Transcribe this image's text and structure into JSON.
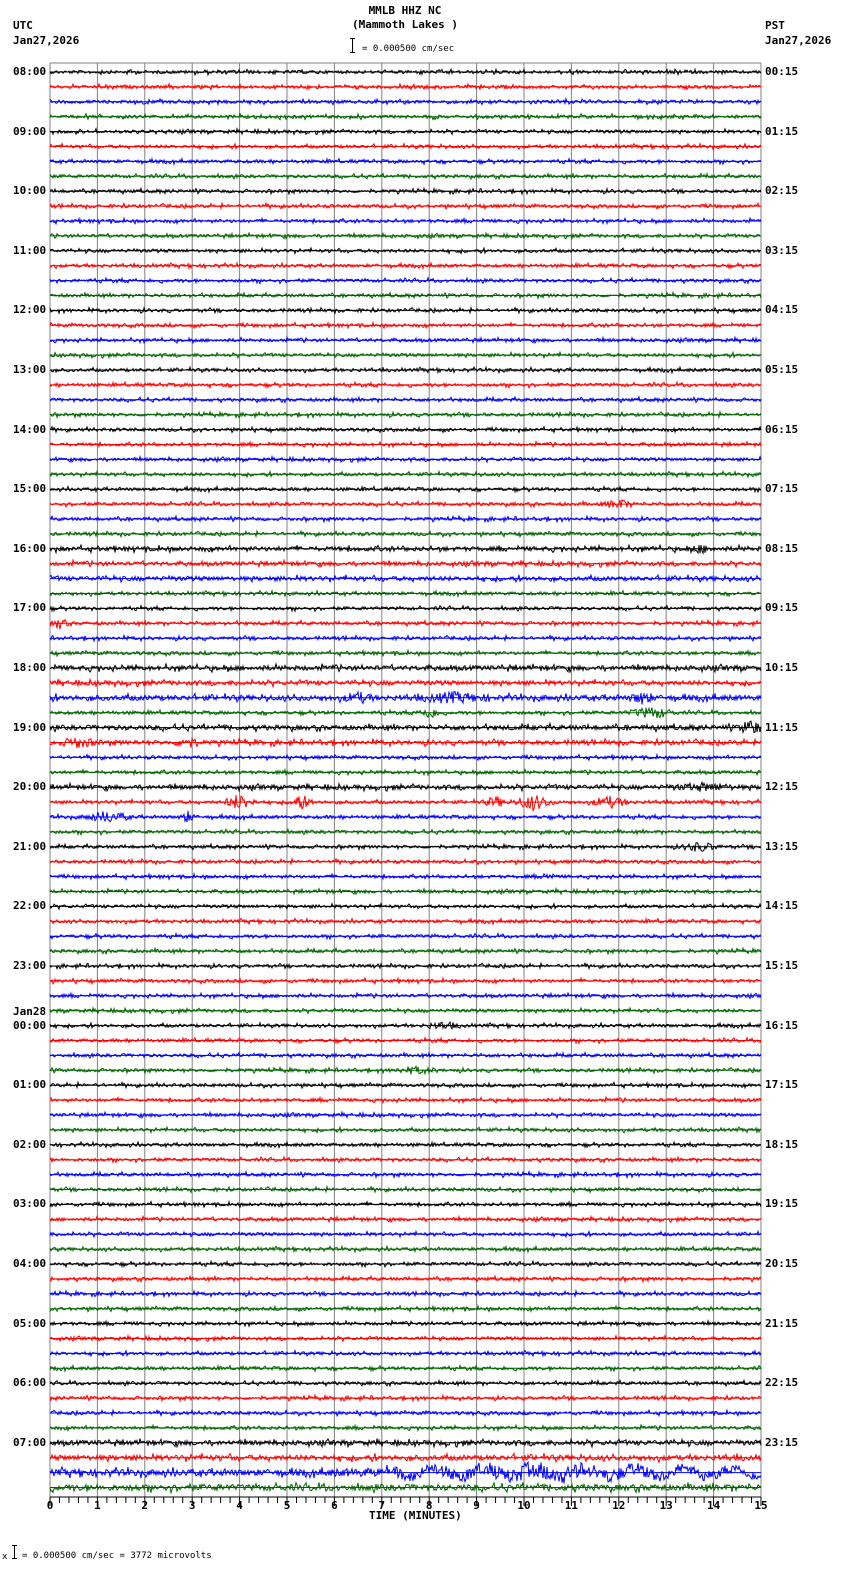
{
  "header": {
    "station": "MMLB HHZ NC",
    "location": "(Mammoth Lakes )",
    "left_tz": "UTC",
    "left_date": "Jan27,2026",
    "right_tz": "PST",
    "right_date": "Jan27,2026",
    "scale_text": "= 0.000500 cm/sec"
  },
  "footer": {
    "prefix": "x",
    "scale_text": "= 0.000500 cm/sec =    3772 microvolts"
  },
  "colors": {
    "trace": [
      "#000000",
      "#ff0000",
      "#0000ff",
      "#006400"
    ],
    "grid": "#808080",
    "axis": "#000000"
  },
  "chart_data": {
    "type": "line",
    "title": "MMLB HHZ NC (Mammoth Lakes )",
    "xlabel": "TIME (MINUTES)",
    "ylabel": "",
    "xlim": [
      0,
      15
    ],
    "x_ticks": [
      0,
      1,
      2,
      3,
      4,
      5,
      6,
      7,
      8,
      9,
      10,
      11,
      12,
      13,
      14,
      15
    ],
    "minor_ticks_per_minute": 5,
    "grid": true,
    "rows_per_hour": 4,
    "row_minutes": 15,
    "trace_colors_cycle": [
      "black",
      "red",
      "blue",
      "green"
    ],
    "left_labels": [
      {
        "row": 0,
        "text": "08:00"
      },
      {
        "row": 4,
        "text": "09:00"
      },
      {
        "row": 8,
        "text": "10:00"
      },
      {
        "row": 12,
        "text": "11:00"
      },
      {
        "row": 16,
        "text": "12:00"
      },
      {
        "row": 20,
        "text": "13:00"
      },
      {
        "row": 24,
        "text": "14:00"
      },
      {
        "row": 28,
        "text": "15:00"
      },
      {
        "row": 32,
        "text": "16:00"
      },
      {
        "row": 36,
        "text": "17:00"
      },
      {
        "row": 40,
        "text": "18:00"
      },
      {
        "row": 44,
        "text": "19:00"
      },
      {
        "row": 48,
        "text": "20:00"
      },
      {
        "row": 52,
        "text": "21:00"
      },
      {
        "row": 56,
        "text": "22:00"
      },
      {
        "row": 60,
        "text": "23:00"
      },
      {
        "row": 64,
        "text": "00:00",
        "date": "Jan28"
      },
      {
        "row": 68,
        "text": "01:00"
      },
      {
        "row": 72,
        "text": "02:00"
      },
      {
        "row": 76,
        "text": "03:00"
      },
      {
        "row": 80,
        "text": "04:00"
      },
      {
        "row": 84,
        "text": "05:00"
      },
      {
        "row": 88,
        "text": "06:00"
      },
      {
        "row": 92,
        "text": "07:00"
      }
    ],
    "right_labels": [
      {
        "row": 0,
        "text": "00:15"
      },
      {
        "row": 4,
        "text": "01:15"
      },
      {
        "row": 8,
        "text": "02:15"
      },
      {
        "row": 12,
        "text": "03:15"
      },
      {
        "row": 16,
        "text": "04:15"
      },
      {
        "row": 20,
        "text": "05:15"
      },
      {
        "row": 24,
        "text": "06:15"
      },
      {
        "row": 28,
        "text": "07:15"
      },
      {
        "row": 32,
        "text": "08:15"
      },
      {
        "row": 36,
        "text": "09:15"
      },
      {
        "row": 40,
        "text": "10:15"
      },
      {
        "row": 44,
        "text": "11:15"
      },
      {
        "row": 48,
        "text": "12:15"
      },
      {
        "row": 52,
        "text": "13:15"
      },
      {
        "row": 56,
        "text": "14:15"
      },
      {
        "row": 60,
        "text": "15:15"
      },
      {
        "row": 64,
        "text": "16:15"
      },
      {
        "row": 68,
        "text": "17:15"
      },
      {
        "row": 72,
        "text": "18:15"
      },
      {
        "row": 76,
        "text": "19:15"
      },
      {
        "row": 80,
        "text": "20:15"
      },
      {
        "row": 84,
        "text": "21:15"
      },
      {
        "row": 88,
        "text": "22:15"
      },
      {
        "row": 92,
        "text": "23:15"
      }
    ],
    "row_count": 96,
    "base_amplitude": 1.6,
    "row_amplitude_overrides": {
      "32": 2.2,
      "33": 2.0,
      "34": 2.2,
      "40": 2.4,
      "41": 2.2,
      "42": 2.6,
      "44": 2.4,
      "45": 2.2,
      "48": 2.2,
      "92": 2.4,
      "93": 2.6,
      "94": 3.2,
      "95": 3.0
    },
    "events": [
      {
        "row": 29,
        "minute": 12.0,
        "width": 0.4,
        "amp": 4
      },
      {
        "row": 32,
        "minute": 13.7,
        "width": 0.4,
        "amp": 3
      },
      {
        "row": 37,
        "minute": 0.2,
        "width": 0.2,
        "amp": 5
      },
      {
        "row": 42,
        "minute": 8.5,
        "width": 0.9,
        "amp": 4
      },
      {
        "row": 42,
        "minute": 6.5,
        "width": 0.4,
        "amp": 4
      },
      {
        "row": 42,
        "minute": 12.5,
        "width": 0.3,
        "amp": 5
      },
      {
        "row": 43,
        "minute": 8.0,
        "width": 0.3,
        "amp": 5
      },
      {
        "row": 43,
        "minute": 12.7,
        "width": 0.6,
        "amp": 5
      },
      {
        "row": 44,
        "minute": 14.8,
        "width": 0.3,
        "amp": 7
      },
      {
        "row": 45,
        "minute": 0.6,
        "width": 0.5,
        "amp": 4
      },
      {
        "row": 45,
        "minute": 2.9,
        "width": 0.3,
        "amp": 5
      },
      {
        "row": 48,
        "minute": 13.8,
        "width": 0.8,
        "amp": 3
      },
      {
        "row": 49,
        "minute": 4.0,
        "width": 0.4,
        "amp": 7
      },
      {
        "row": 49,
        "minute": 5.3,
        "width": 0.3,
        "amp": 7
      },
      {
        "row": 49,
        "minute": 9.4,
        "width": 0.3,
        "amp": 5
      },
      {
        "row": 49,
        "minute": 10.2,
        "width": 0.5,
        "amp": 7
      },
      {
        "row": 49,
        "minute": 11.8,
        "width": 0.5,
        "amp": 5
      },
      {
        "row": 50,
        "minute": 1.2,
        "width": 0.6,
        "amp": 5
      },
      {
        "row": 50,
        "minute": 2.9,
        "width": 0.2,
        "amp": 5
      },
      {
        "row": 52,
        "minute": 13.7,
        "width": 0.5,
        "amp": 4
      },
      {
        "row": 54,
        "minute": 10.5,
        "width": 0.2,
        "amp": 4
      },
      {
        "row": 64,
        "minute": 8.3,
        "width": 0.5,
        "amp": 3
      },
      {
        "row": 67,
        "minute": 7.7,
        "width": 0.6,
        "amp": 3
      },
      {
        "row": 94,
        "minute": 10.5,
        "width": 5.0,
        "amp": 5
      }
    ]
  }
}
